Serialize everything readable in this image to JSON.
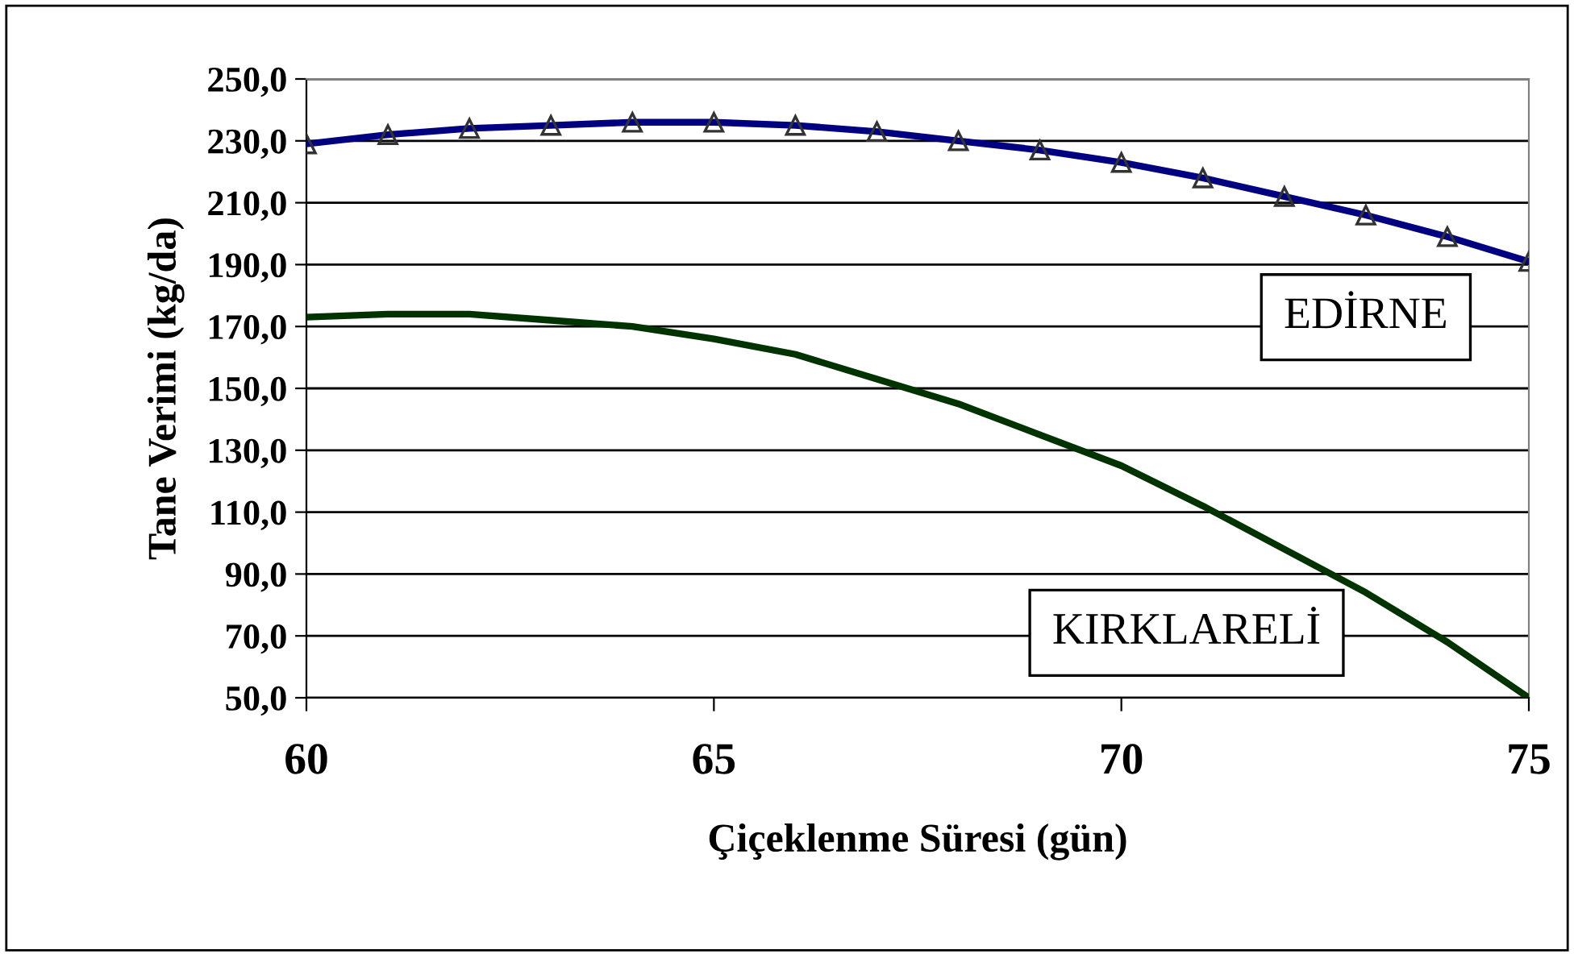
{
  "chart_data": {
    "type": "line",
    "xlabel": "Çiçeklenme Süresi (gün)",
    "ylabel": "Tane Verimi (kg/da)",
    "x": [
      60,
      61,
      62,
      63,
      64,
      65,
      66,
      67,
      68,
      69,
      70,
      71,
      72,
      73,
      74,
      75
    ],
    "series": [
      {
        "name": "EDİRNE",
        "color": "#000080",
        "marker": "triangle",
        "values": [
          229,
          232,
          234,
          235,
          236,
          236,
          235,
          233,
          230,
          227,
          223,
          218,
          212,
          206,
          199,
          191
        ]
      },
      {
        "name": "KIRKLARELİ",
        "color": "#003300",
        "marker": "none",
        "values": [
          173,
          174,
          174,
          172,
          170,
          166,
          161,
          153,
          145,
          135,
          125,
          112,
          98,
          84,
          68,
          50
        ]
      }
    ],
    "xlim": [
      60,
      75
    ],
    "xticks": [
      60,
      65,
      70,
      75
    ],
    "ylim": [
      50,
      250
    ],
    "yticks": [
      {
        "value": 50,
        "label": "50,0"
      },
      {
        "value": 70,
        "label": "70,0"
      },
      {
        "value": 90,
        "label": "90,0"
      },
      {
        "value": 110,
        "label": "110,0"
      },
      {
        "value": 130,
        "label": "130,0"
      },
      {
        "value": 150,
        "label": "150,0"
      },
      {
        "value": 170,
        "label": "170,0"
      },
      {
        "value": 190,
        "label": "190,0"
      },
      {
        "value": 210,
        "label": "210,0"
      },
      {
        "value": 230,
        "label": "230,0"
      },
      {
        "value": 250,
        "label": "250,0"
      }
    ],
    "grid": "y",
    "line_style": "solid",
    "legend": false
  }
}
